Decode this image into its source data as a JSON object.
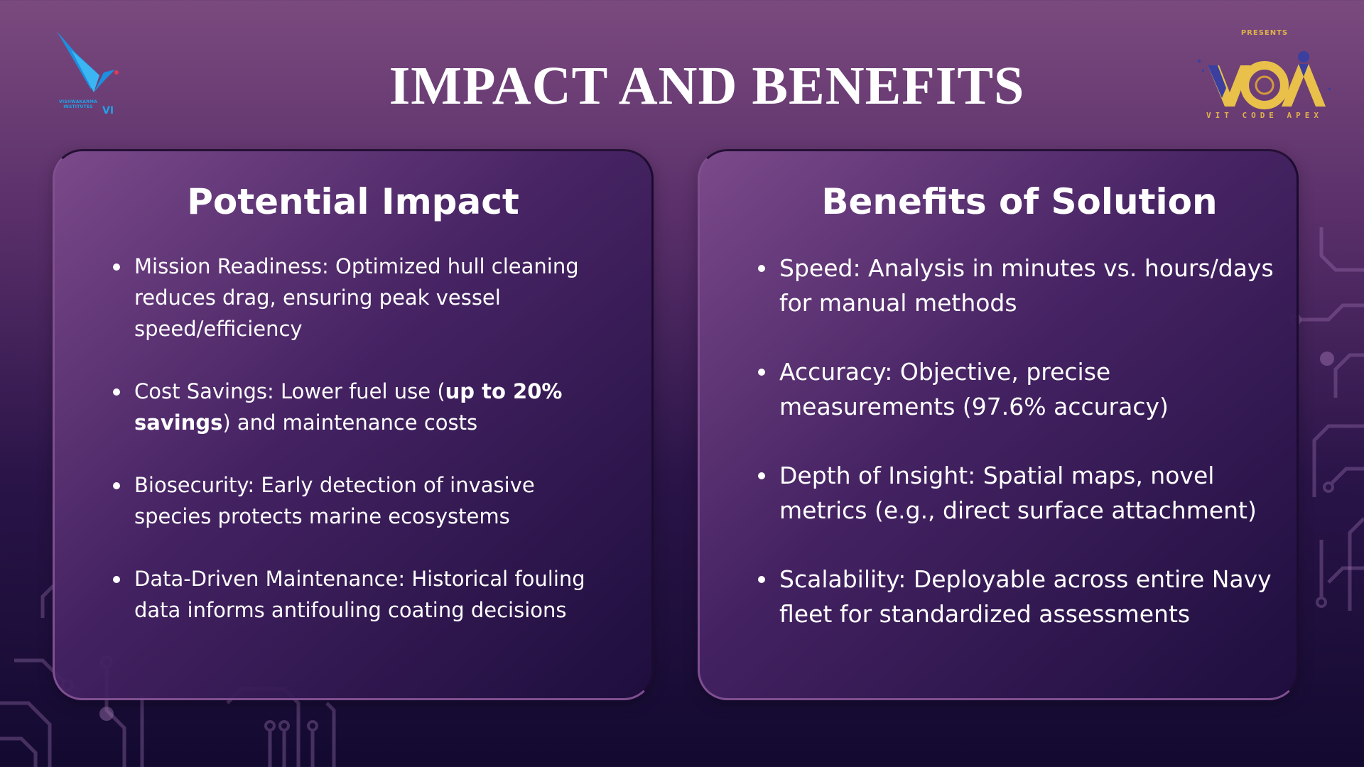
{
  "header": {
    "title": "IMPACT AND BENEFITS"
  },
  "logos": {
    "left": {
      "name": "VISHWAKARMA INSTITUTES",
      "mark": "VI",
      "color": "#1fa3e8"
    },
    "right": {
      "presents": "PRESENTS",
      "wordmark": "VCA",
      "subtitle": "VIT CODE APEX",
      "color": "#e0b24a"
    }
  },
  "cards": {
    "left": {
      "heading": "Potential Impact",
      "items": [
        {
          "text": "Mission Readiness: Optimized hull cleaning reduces drag, ensuring peak vessel speed/efficiency"
        },
        {
          "before": "Cost Savings: Lower fuel use (",
          "bold": "up to 20% savings",
          "after": ") and maintenance costs"
        },
        {
          "text": "Biosecurity: Early detection of invasive species protects marine ecosystems"
        },
        {
          "text": "Data-Driven Maintenance: Historical fouling data informs antifouling coating decisions"
        }
      ]
    },
    "right": {
      "heading": "Benefits of Solution",
      "items": [
        {
          "text": "Speed: Analysis in minutes vs. hours/days for manual methods"
        },
        {
          "text": "Accuracy: Objective, precise measurements (97.6% accuracy)"
        },
        {
          "text": "Depth of Insight: Spatial maps, novel metrics (e.g., direct surface attachment)"
        },
        {
          "text": "Scalability: Deployable across entire Navy fleet for standardized assessments"
        }
      ]
    }
  },
  "colors": {
    "background_top": "#7a4a7e",
    "background_bottom": "#130a30",
    "circuit": "#a377b6",
    "text": "#ffffff"
  }
}
